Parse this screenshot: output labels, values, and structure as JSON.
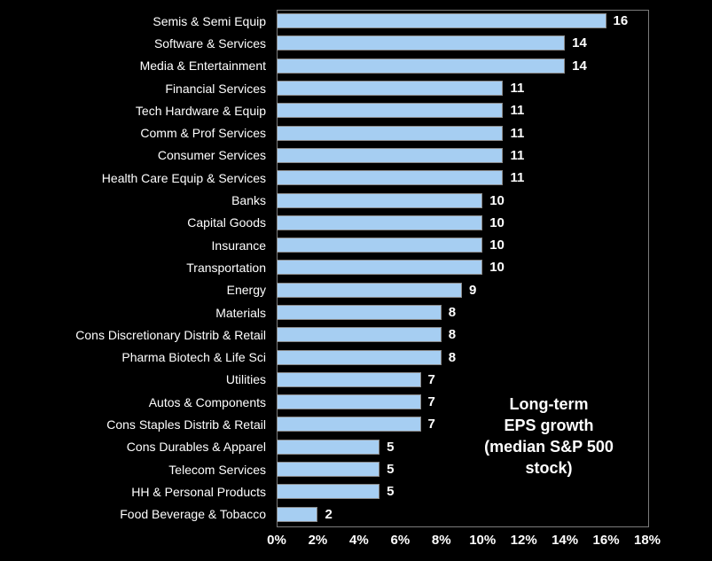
{
  "chart_data": {
    "type": "bar",
    "orientation": "horizontal",
    "title": "",
    "annotation_lines": [
      "Long-term",
      "EPS growth",
      "(median S&P 500",
      "stock)"
    ],
    "categories": [
      "Semis & Semi Equip",
      "Software & Services",
      "Media & Entertainment",
      "Financial Services",
      "Tech Hardware & Equip",
      "Comm & Prof Services",
      "Consumer Services",
      "Health Care Equip & Services",
      "Banks",
      "Capital Goods",
      "Insurance",
      "Transportation",
      "Energy",
      "Materials",
      "Cons Discretionary Distrib & Retail",
      "Pharma Biotech & Life Sci",
      "Utilities",
      "Autos & Components",
      "Cons Staples Distrib & Retail",
      "Cons Durables & Apparel",
      "Telecom Services",
      "HH & Personal Products",
      "Food Beverage & Tobacco"
    ],
    "values": [
      16,
      14,
      14,
      11,
      11,
      11,
      11,
      11,
      10,
      10,
      10,
      10,
      9,
      8,
      8,
      8,
      7,
      7,
      7,
      5,
      5,
      5,
      2
    ],
    "xlim": [
      0,
      18
    ],
    "x_ticks": [
      "0%",
      "2%",
      "4%",
      "6%",
      "8%",
      "10%",
      "12%",
      "14%",
      "16%",
      "18%"
    ],
    "xlabel": "",
    "ylabel": "",
    "grid": false,
    "legend": false,
    "colors": {
      "background": "#000000",
      "text": "#ffffff",
      "bar_fill": "#a6cef2",
      "bar_border": "#8a8a8a",
      "plot_border": "#7b7b7b"
    }
  }
}
